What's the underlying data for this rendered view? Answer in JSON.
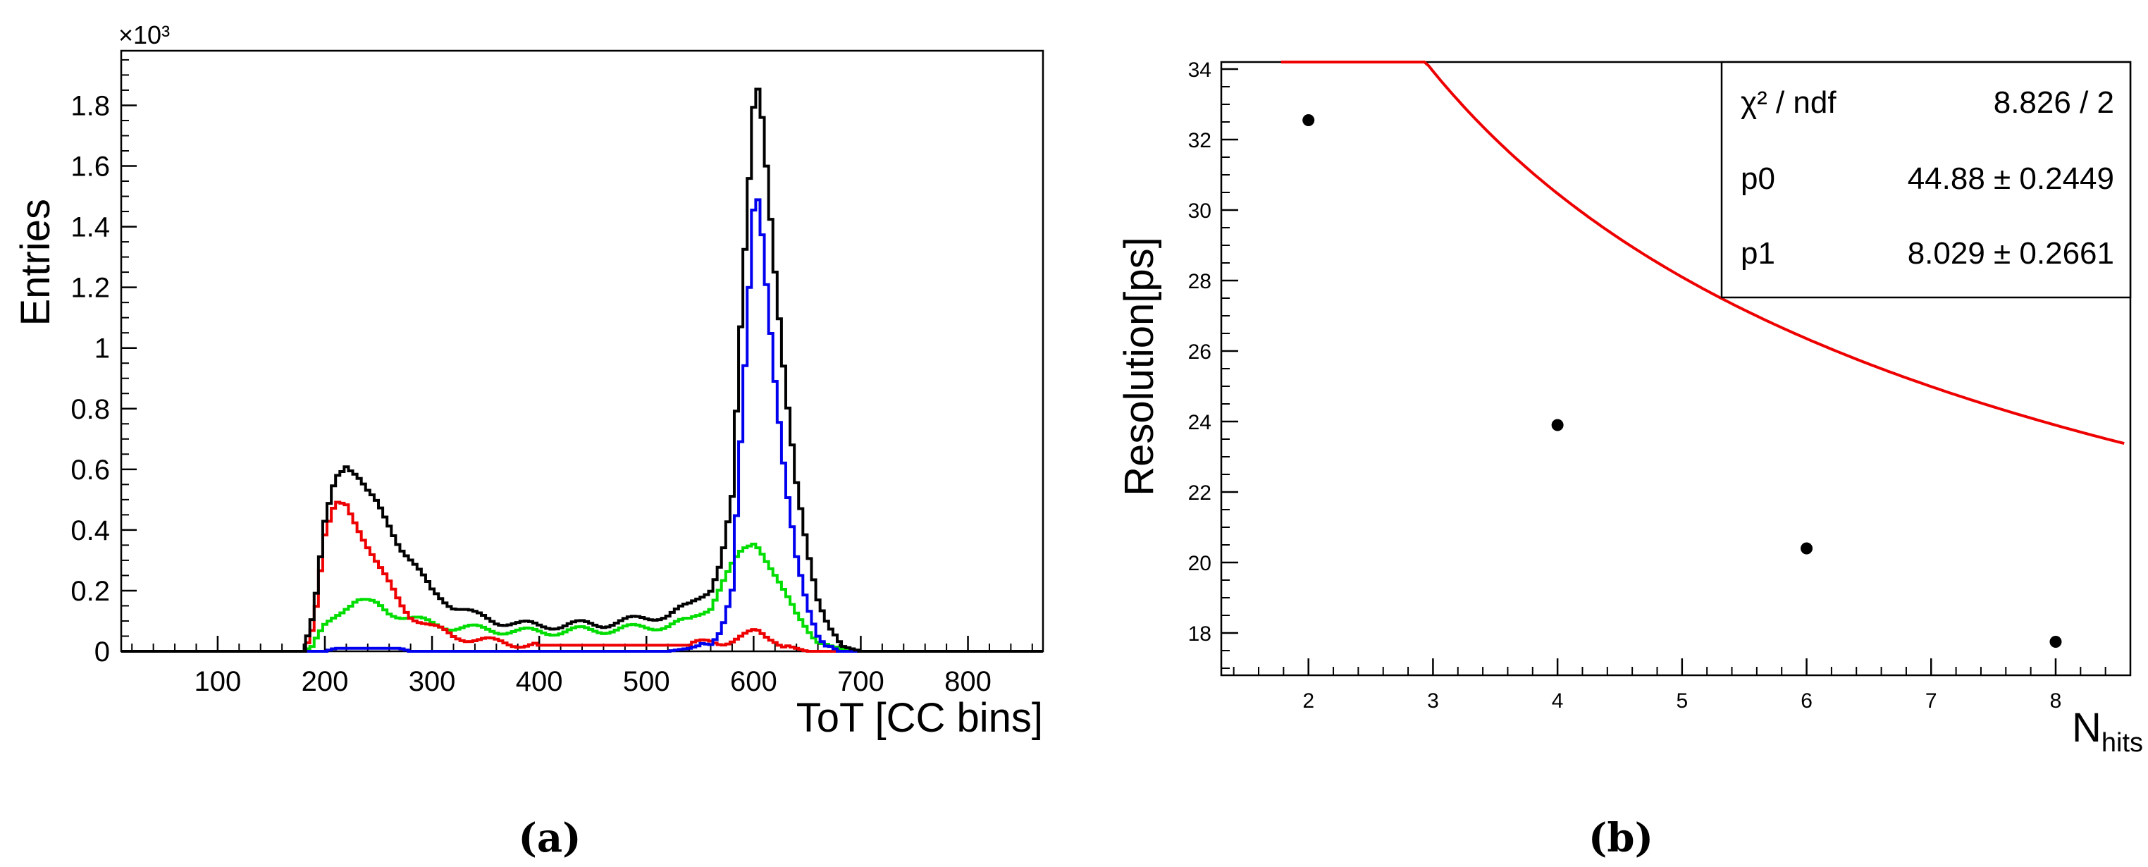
{
  "colors": {
    "black": "#000000",
    "red": "#ee0000",
    "green": "#00dd00",
    "blue": "#0000ee"
  },
  "panel_a": {
    "caption": "(a)",
    "exponent_label": "×10³",
    "chart_data": {
      "type": "line",
      "histogram": true,
      "xlabel": "ToT [CC bins]",
      "ylabel": "Entries",
      "y_multiplier": 1000,
      "xlim": [
        10,
        870
      ],
      "ylim": [
        0,
        1.98
      ],
      "x_ticks": [
        100,
        200,
        300,
        400,
        500,
        600,
        700,
        800
      ],
      "y_ticks": [
        0,
        0.2,
        0.4,
        0.6,
        0.8,
        1,
        1.2,
        1.4,
        1.6,
        1.8
      ],
      "x": [
        10,
        50,
        100,
        150,
        180,
        190,
        200,
        210,
        220,
        230,
        240,
        250,
        260,
        270,
        280,
        290,
        300,
        320,
        340,
        360,
        380,
        400,
        420,
        440,
        460,
        480,
        500,
        520,
        540,
        560,
        570,
        580,
        590,
        600,
        605,
        610,
        620,
        630,
        640,
        650,
        660,
        670,
        680,
        700,
        750,
        800,
        870
      ],
      "series": [
        {
          "name": "black",
          "color_key": "black",
          "values": [
            0,
            0,
            0,
            0,
            0,
            0.12,
            0.42,
            0.58,
            0.62,
            0.58,
            0.52,
            0.48,
            0.42,
            0.35,
            0.3,
            0.25,
            0.2,
            0.15,
            0.12,
            0.1,
            0.09,
            0.085,
            0.085,
            0.09,
            0.09,
            0.1,
            0.11,
            0.12,
            0.15,
            0.21,
            0.3,
            0.5,
            1.2,
            1.8,
            1.88,
            1.7,
            1.25,
            0.85,
            0.55,
            0.35,
            0.18,
            0.08,
            0.02,
            0,
            0,
            0,
            0
          ]
        },
        {
          "name": "red",
          "color_key": "red",
          "values": [
            0,
            0,
            0,
            0,
            0,
            0.1,
            0.38,
            0.48,
            0.48,
            0.42,
            0.35,
            0.28,
            0.22,
            0.16,
            0.12,
            0.1,
            0.08,
            0.05,
            0.04,
            0.03,
            0.025,
            0.02,
            0.02,
            0.02,
            0.02,
            0.02,
            0.02,
            0.02,
            0.02,
            0.03,
            0.03,
            0.04,
            0.05,
            0.06,
            0.06,
            0.05,
            0.04,
            0.02,
            0.01,
            0,
            0,
            0,
            0,
            0,
            0,
            0,
            0
          ]
        },
        {
          "name": "green",
          "color_key": "green",
          "values": [
            0,
            0,
            0,
            0,
            0,
            0.02,
            0.08,
            0.12,
            0.15,
            0.17,
            0.16,
            0.15,
            0.13,
            0.12,
            0.11,
            0.1,
            0.09,
            0.08,
            0.075,
            0.07,
            0.065,
            0.065,
            0.065,
            0.07,
            0.07,
            0.075,
            0.08,
            0.085,
            0.1,
            0.15,
            0.22,
            0.28,
            0.33,
            0.36,
            0.35,
            0.32,
            0.25,
            0.18,
            0.12,
            0.08,
            0.04,
            0.02,
            0.01,
            0,
            0,
            0,
            0
          ]
        },
        {
          "name": "blue",
          "color_key": "blue",
          "values": [
            0,
            0,
            0,
            0,
            0,
            0,
            0,
            0.01,
            0.01,
            0.01,
            0.01,
            0.01,
            0.01,
            0.01,
            0,
            0,
            0,
            0,
            0,
            0,
            0,
            0,
            0,
            0,
            0,
            0,
            0,
            0,
            0.01,
            0.03,
            0.08,
            0.2,
            0.8,
            1.45,
            1.5,
            1.3,
            0.9,
            0.55,
            0.3,
            0.15,
            0.06,
            0.02,
            0,
            0,
            0,
            0,
            0
          ]
        }
      ]
    }
  },
  "panel_b": {
    "caption": "(b)",
    "chart_data": {
      "type": "scatter",
      "xlabel": "N",
      "xlabel_sub": "hits",
      "ylabel": "Resolution[ps]",
      "xlim": [
        1.3,
        8.6
      ],
      "ylim": [
        16.8,
        34.2
      ],
      "x_ticks": [
        2,
        3,
        4,
        5,
        6,
        7,
        8
      ],
      "y_ticks": [
        18,
        20,
        22,
        24,
        26,
        28,
        30,
        32,
        34
      ],
      "points": [
        {
          "x": 2,
          "y": 32.55
        },
        {
          "x": 4,
          "y": 23.9
        },
        {
          "x": 6,
          "y": 20.4
        },
        {
          "x": 8,
          "y": 17.75
        }
      ],
      "fit": {
        "function": "p0/sqrt(x)+p1",
        "p0": 44.88,
        "p1": 8.029,
        "x_range": [
          1.78,
          8.55
        ]
      },
      "stats": [
        {
          "name": "χ² / ndf",
          "value": "8.826 / 2"
        },
        {
          "name": "p0",
          "value": "44.88 ± 0.2449"
        },
        {
          "name": "p1",
          "value": "8.029 ± 0.2661"
        }
      ]
    }
  }
}
